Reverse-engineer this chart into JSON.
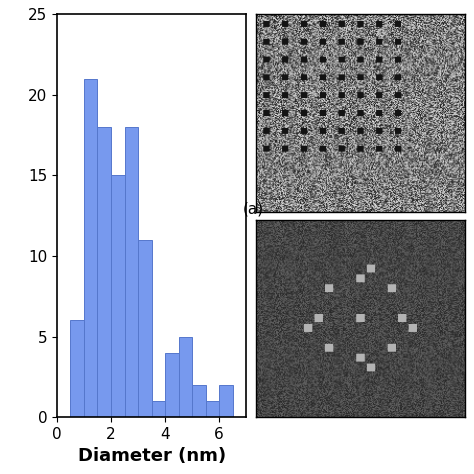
{
  "bar_edges": [
    0.5,
    1.0,
    1.5,
    2.0,
    2.5,
    3.0,
    3.5,
    4.0,
    4.5,
    5.0,
    5.5,
    6.0,
    6.5
  ],
  "bar_heights": [
    6,
    21,
    18,
    15,
    18,
    11,
    1,
    4,
    5,
    2,
    1,
    2
  ],
  "bar_color": "#7799ee",
  "bar_edge_color": "#5577cc",
  "xlabel": "Diameter (nm)",
  "xlim": [
    0,
    7
  ],
  "ylim": [
    0,
    25
  ],
  "yticks": [
    0,
    5,
    10,
    15,
    20,
    25
  ],
  "xticks": [
    0,
    2,
    4,
    6
  ],
  "label_fontsize": 13,
  "tick_fontsize": 11,
  "figsize": [
    4.74,
    4.74
  ],
  "dpi": 100,
  "bg_color": "#ffffff",
  "label_a": "(a)"
}
